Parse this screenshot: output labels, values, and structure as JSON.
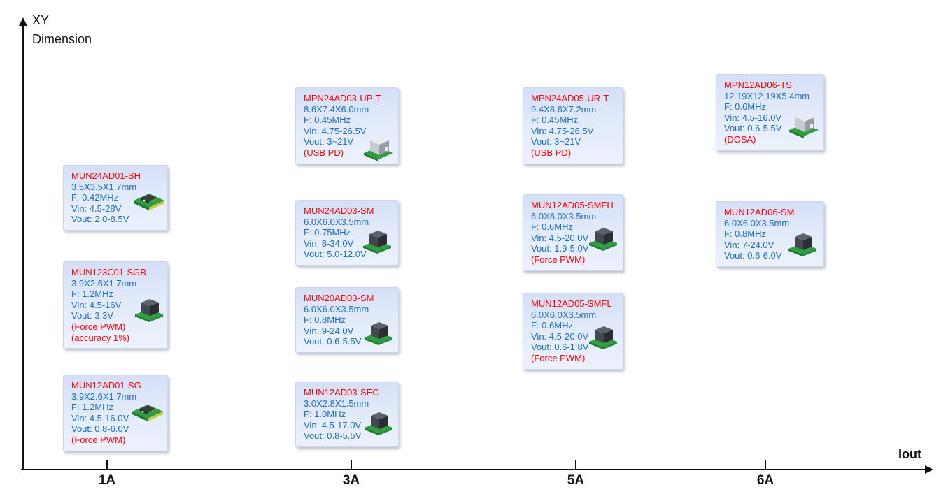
{
  "axes": {
    "y_label": {
      "line1": "XY",
      "line2": "Dimension"
    },
    "x_label": "Iout",
    "x_ticks": [
      "1A",
      "3A",
      "5A",
      "6A"
    ]
  },
  "colors": {
    "card_background": "#dce6f8",
    "product_name_red": "#ff0000",
    "spec_blue": "#1b6ec2",
    "axis_black": "#111111",
    "pcb_green": "#2f9e41"
  },
  "cards": [
    {
      "name": "MUN24AD01-SH",
      "size": "3.5X3.5X1.7mm",
      "freq": "F: 0.42MHz",
      "vin": "Vin: 4.5-28V",
      "vout": "Vout: 2.0-8.5V",
      "notes": [],
      "chip": "flat-board"
    },
    {
      "name": "MUN123C01-SGB",
      "size": "3.9X2.6X1.7mm",
      "freq": "F: 1.2MHz",
      "vin": "Vin: 4.5-16V",
      "vout": "Vout: 3.3V",
      "notes": [
        "(Force PWM)",
        "(accuracy 1%)"
      ],
      "chip": "dark-cube"
    },
    {
      "name": "MUN12AD01-SG",
      "size": "3.9X2.6X1.7mm",
      "freq": "F: 1.2MHz",
      "vin": "Vin: 4.5-16.0V",
      "vout": "Vout: 0.8-6.0V",
      "notes": [
        "(Force PWM)"
      ],
      "chip": "flat-board"
    },
    {
      "name": "MPN24AD03-UP-T",
      "size": "8.6X7.4X6.0mm",
      "freq": "F: 0.45MHz",
      "vin": "Vin: 4.75-26.5V",
      "vout": "Vout: 3~21V",
      "notes": [
        "(USB PD)"
      ],
      "chip": "light-cube"
    },
    {
      "name": "MUN24AD03-SM",
      "size": "6.0X6.0X3.5mm",
      "freq": "F: 0.75MHz",
      "vin": "Vin: 8-34.0V",
      "vout": "Vout: 5.0-12.0V",
      "notes": [],
      "chip": "dark-cube"
    },
    {
      "name": "MUN20AD03-SM",
      "size": "6.0X6.0X3.5mm",
      "freq": "F: 0.8MHz",
      "vin": "Vin: 9-24.0V",
      "vout": "Vout: 0.6-5.5V",
      "notes": [],
      "chip": "dark-cube"
    },
    {
      "name": "MUN12AD03-SEC",
      "size": "3.0X2.8X1.5mm",
      "freq": "F: 1.0MHz",
      "vin": "Vin: 4.5-17.0V",
      "vout": "Vout: 0.8-5.5V",
      "notes": [],
      "chip": "dark-cube"
    },
    {
      "name": "MPN24AD05-UR-T",
      "size": "9.4X8.6X7.2mm",
      "freq": "F: 0.45MHz",
      "vin": "Vin: 4.75-26.5V",
      "vout": "Vout: 3~21V",
      "notes": [
        "(USB PD)"
      ],
      "chip": "none"
    },
    {
      "name": "MUN12AD05-SMFH",
      "size": "6.0X6.0X3.5mm",
      "freq": "F: 0.6MHz",
      "vin": "Vin: 4.5-20.0V",
      "vout": "Vout: 1.9-5.0V",
      "notes": [
        "(Force PWM)"
      ],
      "chip": "dark-cube"
    },
    {
      "name": "MUN12AD05-SMFL",
      "size": "6.0X6.0X3.5mm",
      "freq": "F: 0.6MHz",
      "vin": "Vin: 4.5-20.0V",
      "vout": "Vout: 0.6-1.8V",
      "notes": [
        "(Force PWM)"
      ],
      "chip": "dark-cube"
    },
    {
      "name": "MPN12AD06-TS",
      "size": "12.19X12.19X5.4mm",
      "freq": "F: 0.6MHz",
      "vin": "Vin: 4.5-16.0V",
      "vout": "Vout: 0.6-5.5V",
      "notes": [
        "(DOSA)"
      ],
      "chip": "light-cube"
    },
    {
      "name": "MUN12AD06-SM",
      "size": "6.0X6.0X3.5mm",
      "freq": "F: 0.8MHz",
      "vin": "Vin: 7-24.0V",
      "vout": "Vout: 0.6-6.0V",
      "notes": [],
      "chip": "dark-cube"
    }
  ]
}
